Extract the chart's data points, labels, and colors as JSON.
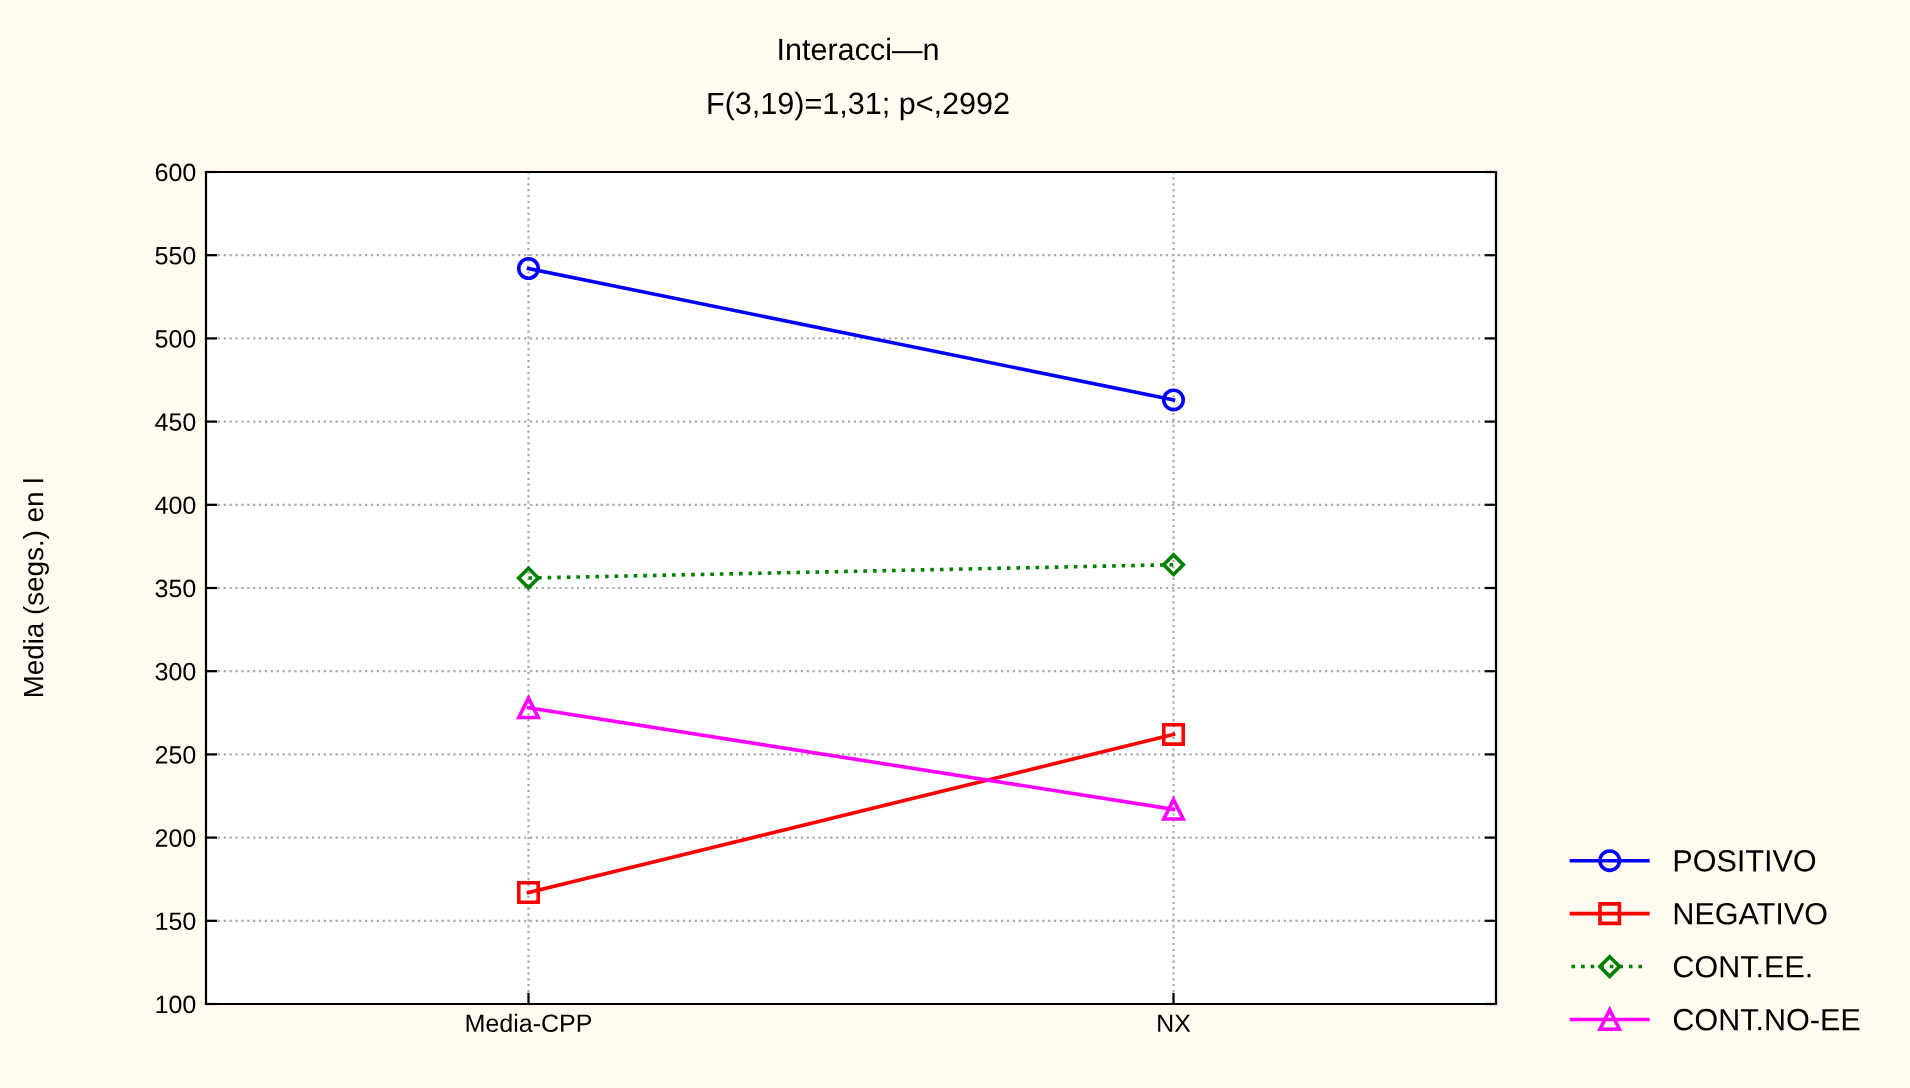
{
  "chart_data": {
    "type": "line",
    "title": "Interacci—n",
    "subtitle": "F(3,19)=1,31; p<,2992",
    "ylabel": "Media (segs.) en l",
    "categories": [
      "Media-CPP",
      "NX"
    ],
    "series": [
      {
        "name": "POSITIVO",
        "color": "#0000ff",
        "values": [
          542,
          463
        ],
        "marker": "circle",
        "line_style": "solid"
      },
      {
        "name": "NEGATIVO",
        "color": "#ff0000",
        "values": [
          167,
          262
        ],
        "marker": "square",
        "line_style": "solid"
      },
      {
        "name": "CONT.EE.",
        "color": "#008000",
        "values": [
          356,
          364
        ],
        "marker": "diamond",
        "line_style": "dotted"
      },
      {
        "name": "CONT.NO-EE",
        "color": "#ff00ff",
        "values": [
          278,
          217
        ],
        "marker": "triangle",
        "line_style": "solid"
      }
    ],
    "ylim": [
      100,
      600
    ],
    "yticks": [
      100,
      150,
      200,
      250,
      300,
      350,
      400,
      450,
      500,
      550,
      600
    ],
    "grid": true,
    "legend": "bottom right"
  }
}
